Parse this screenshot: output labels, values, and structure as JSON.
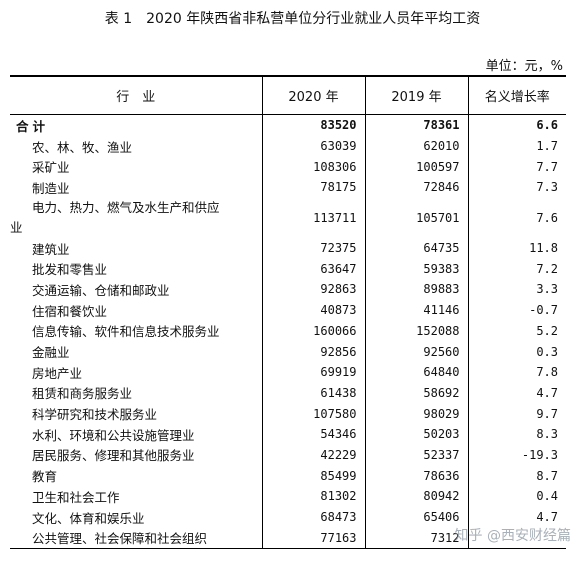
{
  "title": "表 1　2020 年陕西省非私营单位分行业就业人员年平均工资",
  "unit": "单位：元，%",
  "headers": {
    "industry": "行　业",
    "y2020": "2020 年",
    "y2019": "2019 年",
    "growth": "名义增长率"
  },
  "total": {
    "name": "合计",
    "y2020": "83520",
    "y2019": "78361",
    "growth": "6.6"
  },
  "rows": [
    {
      "name": "农、林、牧、渔业",
      "y2020": "63039",
      "y2019": "62010",
      "growth": "1.7"
    },
    {
      "name": "采矿业",
      "y2020": "108306",
      "y2019": "100597",
      "growth": "7.7"
    },
    {
      "name": "制造业",
      "y2020": "78175",
      "y2019": "72846",
      "growth": "7.3"
    },
    {
      "name_line1": "电力、热力、燃气及水生产和供应",
      "name_line2": "业",
      "y2020": "113711",
      "y2019": "105701",
      "growth": "7.6"
    },
    {
      "name": "建筑业",
      "y2020": "72375",
      "y2019": "64735",
      "growth": "11.8"
    },
    {
      "name": "批发和零售业",
      "y2020": "63647",
      "y2019": "59383",
      "growth": "7.2"
    },
    {
      "name": "交通运输、仓储和邮政业",
      "y2020": "92863",
      "y2019": "89883",
      "growth": "3.3"
    },
    {
      "name": "住宿和餐饮业",
      "y2020": "40873",
      "y2019": "41146",
      "growth": "-0.7"
    },
    {
      "name": "信息传输、软件和信息技术服务业",
      "y2020": "160066",
      "y2019": "152088",
      "growth": "5.2"
    },
    {
      "name": "金融业",
      "y2020": "92856",
      "y2019": "92560",
      "growth": "0.3"
    },
    {
      "name": "房地产业",
      "y2020": "69919",
      "y2019": "64840",
      "growth": "7.8"
    },
    {
      "name": "租赁和商务服务业",
      "y2020": "61438",
      "y2019": "58692",
      "growth": "4.7"
    },
    {
      "name": "科学研究和技术服务业",
      "y2020": "107580",
      "y2019": "98029",
      "growth": "9.7"
    },
    {
      "name": "水利、环境和公共设施管理业",
      "y2020": "54346",
      "y2019": "50203",
      "growth": "8.3"
    },
    {
      "name": "居民服务、修理和其他服务业",
      "y2020": "42229",
      "y2019": "52337",
      "growth": "-19.3"
    },
    {
      "name": "教育",
      "y2020": "85499",
      "y2019": "78636",
      "growth": "8.7"
    },
    {
      "name": "卫生和社会工作",
      "y2020": "81302",
      "y2019": "80942",
      "growth": "0.4"
    },
    {
      "name": "文化、体育和娱乐业",
      "y2020": "68473",
      "y2019": "65406",
      "growth": "4.7"
    },
    {
      "name": "公共管理、社会保障和社会组织",
      "y2020": "77163",
      "y2019": "7312",
      "growth": ""
    }
  ],
  "watermark": "知乎 @西安财经篇"
}
